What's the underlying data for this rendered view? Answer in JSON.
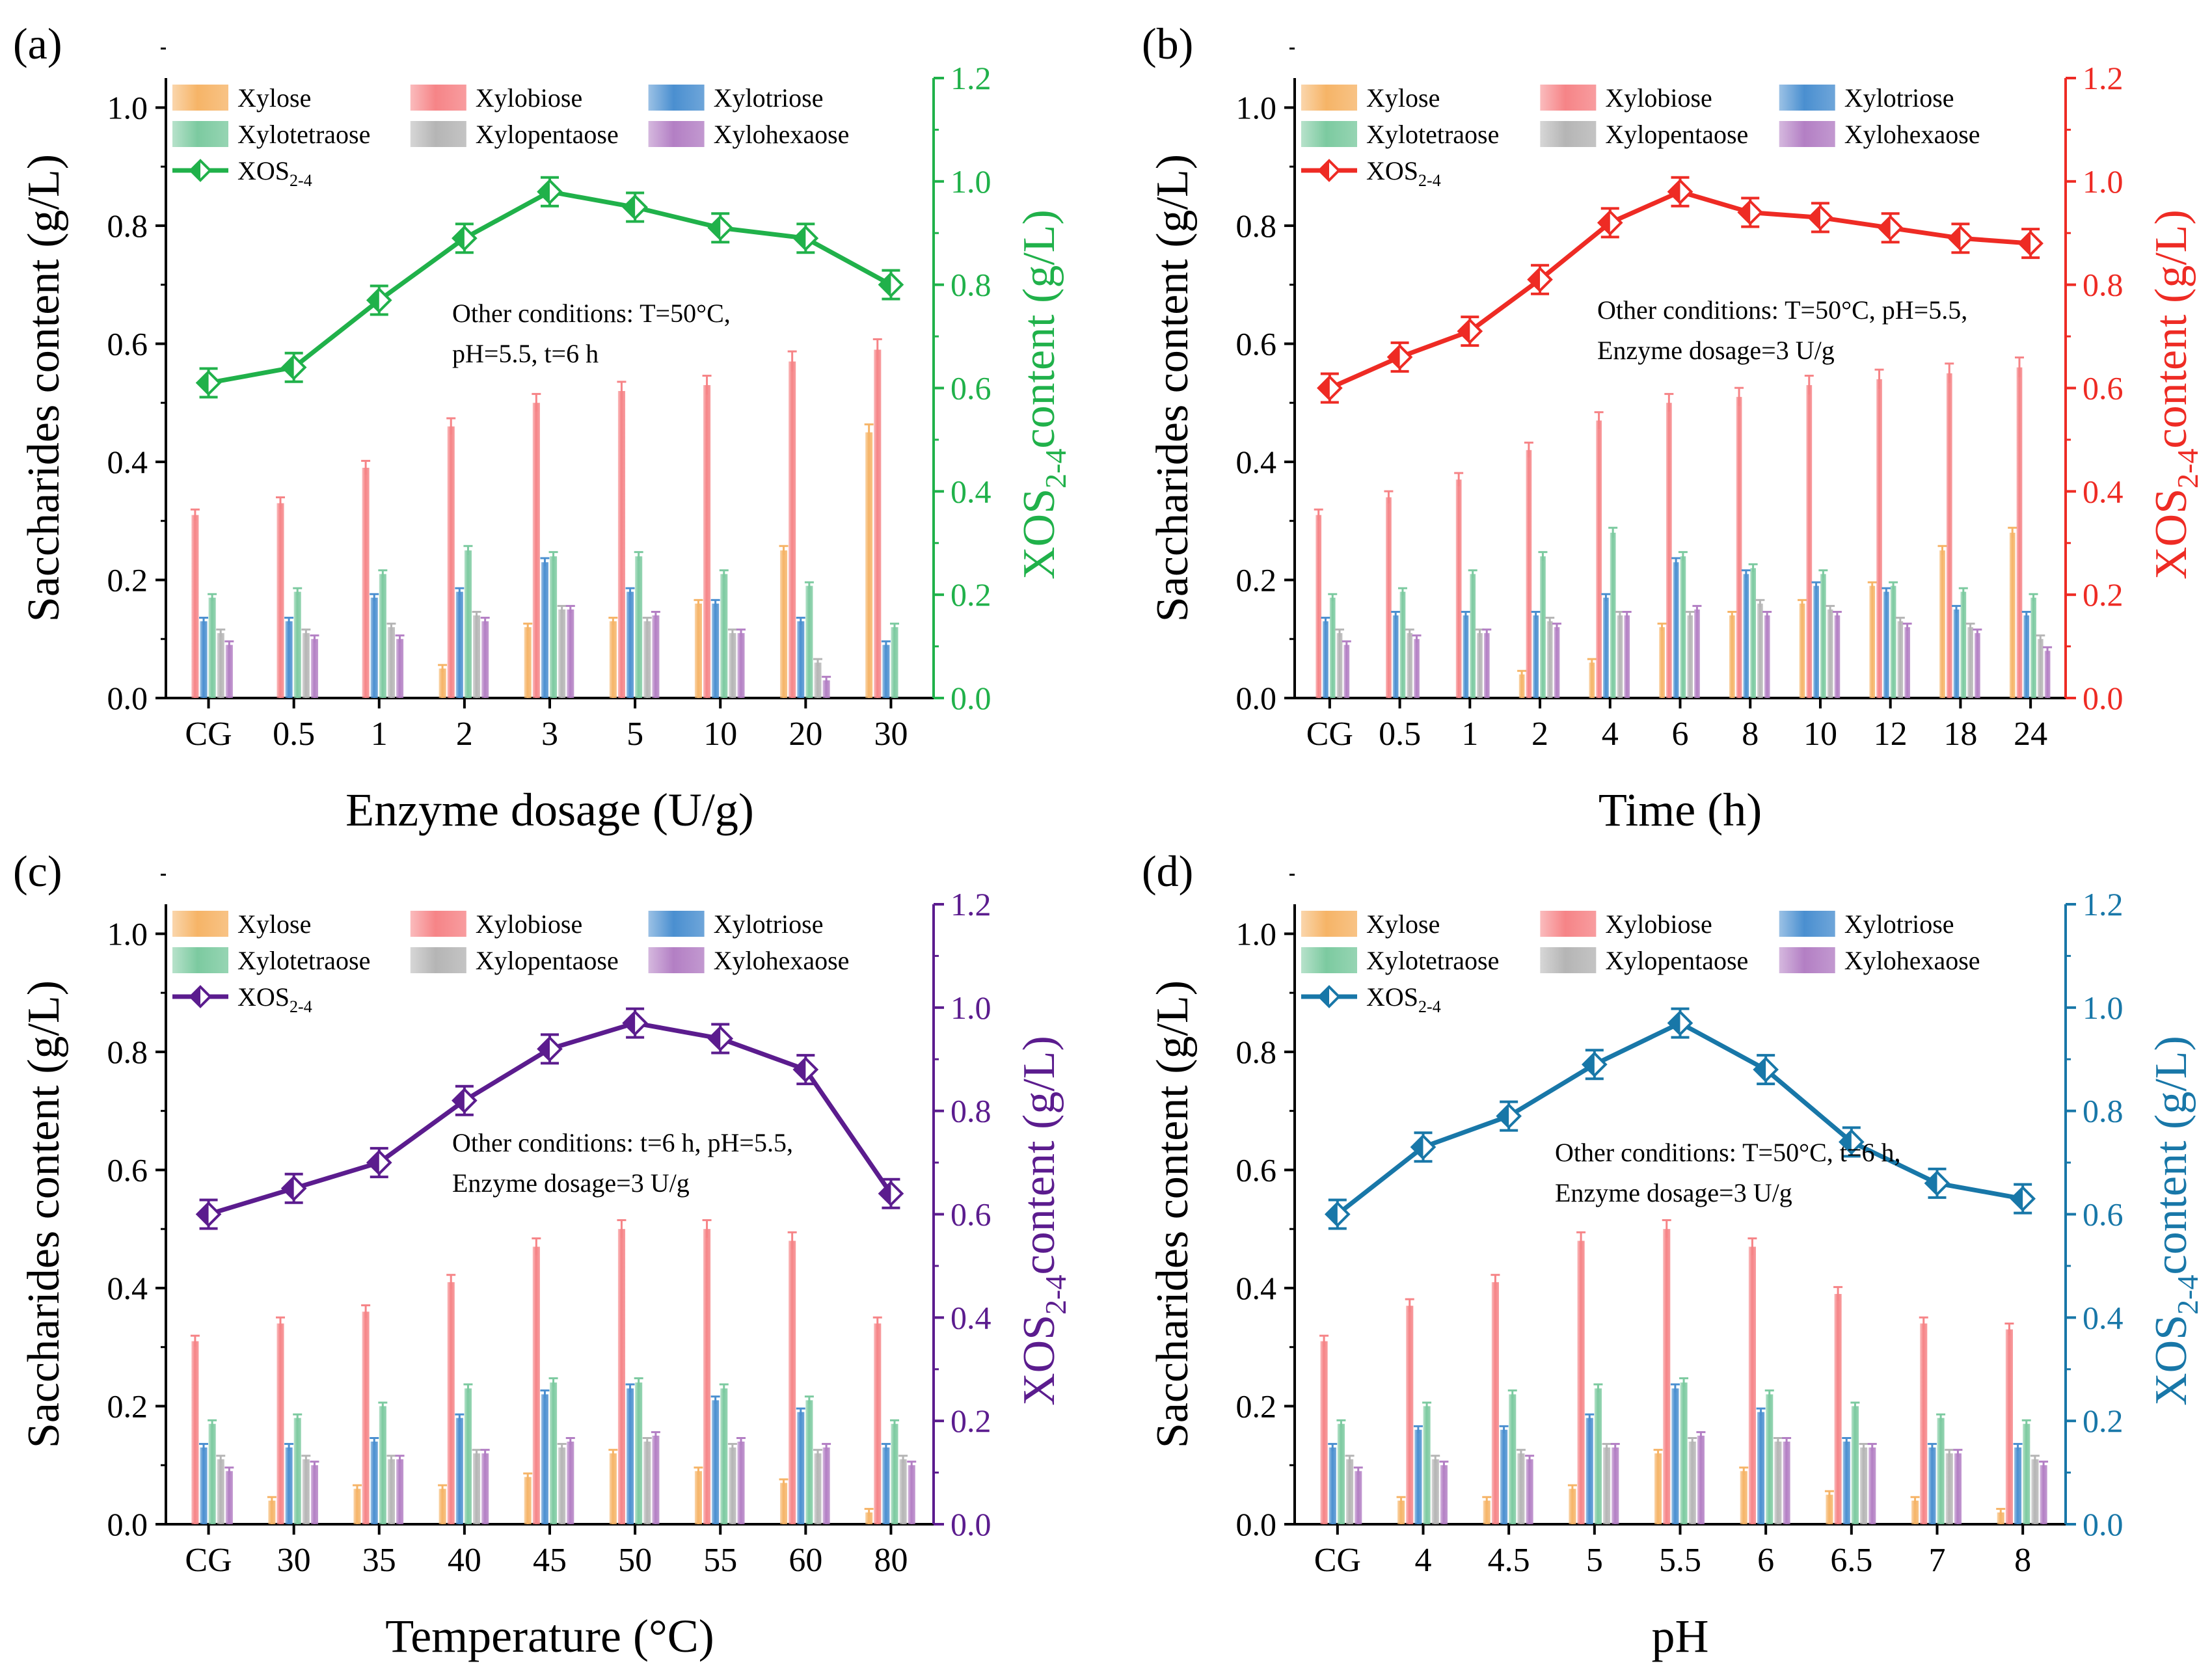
{
  "chart_data": [
    {
      "panel": "(a)",
      "type": "bar+line",
      "xlabel": "Enzyme dosage (U/g)",
      "ylabel": "Saccharides content (g/L)",
      "ylabel2_main": "XOS",
      "ylabel2_sub": "2-4",
      "ylabel2_rest": "content (g/L)",
      "accent": "#20b14a",
      "ylim": [
        0,
        1.05
      ],
      "y_ticks": [
        "0.0",
        "0.2",
        "0.4",
        "0.6",
        "0.8",
        "1.0"
      ],
      "y2lim": [
        0,
        1.2
      ],
      "y2_ticks": [
        "0.0",
        "0.2",
        "0.4",
        "0.6",
        "0.8",
        "1.0",
        "1.2"
      ],
      "categories": [
        "CG",
        "0.5",
        "1",
        "2",
        "3",
        "5",
        "10",
        "20",
        "30"
      ],
      "annotation": [
        "Other conditions: T=50°C,",
        "pH=5.5, t=6 h"
      ],
      "series": [
        {
          "name": "Xylose",
          "values": [
            0.0,
            0.0,
            0.0,
            0.05,
            0.12,
            0.13,
            0.16,
            0.25,
            0.45
          ]
        },
        {
          "name": "Xylobiose",
          "values": [
            0.31,
            0.33,
            0.39,
            0.46,
            0.5,
            0.52,
            0.53,
            0.57,
            0.59
          ]
        },
        {
          "name": "Xylotriose",
          "values": [
            0.13,
            0.13,
            0.17,
            0.18,
            0.23,
            0.18,
            0.16,
            0.13,
            0.09
          ]
        },
        {
          "name": "Xylotetraose",
          "values": [
            0.17,
            0.18,
            0.21,
            0.25,
            0.24,
            0.24,
            0.21,
            0.19,
            0.12
          ]
        },
        {
          "name": "Xylopentaose",
          "values": [
            0.11,
            0.11,
            0.12,
            0.14,
            0.15,
            0.13,
            0.11,
            0.06,
            0.0
          ]
        },
        {
          "name": "Xylohexaose",
          "values": [
            0.09,
            0.1,
            0.1,
            0.13,
            0.15,
            0.14,
            0.11,
            0.03,
            0.0
          ]
        }
      ],
      "line": {
        "name": "XOS2-4",
        "legend_main": "XOS",
        "legend_sub": "2-4",
        "values": [
          0.61,
          0.64,
          0.77,
          0.89,
          0.98,
          0.95,
          0.91,
          0.89,
          0.8
        ]
      }
    },
    {
      "panel": "(b)",
      "type": "bar+line",
      "xlabel": "Time (h)",
      "ylabel": "Saccharides content (g/L)",
      "ylabel2_main": "XOS",
      "ylabel2_sub": "2-4",
      "ylabel2_rest": "content (g/L)",
      "accent": "#ee2b24",
      "ylim": [
        0,
        1.05
      ],
      "y_ticks": [
        "0.0",
        "0.2",
        "0.4",
        "0.6",
        "0.8",
        "1.0"
      ],
      "y2lim": [
        0,
        1.2
      ],
      "y2_ticks": [
        "0.0",
        "0.2",
        "0.4",
        "0.6",
        "0.8",
        "1.0",
        "1.2"
      ],
      "categories": [
        "CG",
        "0.5",
        "1",
        "2",
        "4",
        "6",
        "8",
        "10",
        "12",
        "18",
        "24"
      ],
      "annotation": [
        "Other conditions: T=50°C, pH=5.5,",
        "Enzyme dosage=3 U/g"
      ],
      "series": [
        {
          "name": "Xylose",
          "values": [
            0.0,
            0.0,
            0.0,
            0.04,
            0.06,
            0.12,
            0.14,
            0.16,
            0.19,
            0.25,
            0.28
          ]
        },
        {
          "name": "Xylobiose",
          "values": [
            0.31,
            0.34,
            0.37,
            0.42,
            0.47,
            0.5,
            0.51,
            0.53,
            0.54,
            0.55,
            0.56
          ]
        },
        {
          "name": "Xylotriose",
          "values": [
            0.13,
            0.14,
            0.14,
            0.14,
            0.17,
            0.23,
            0.21,
            0.19,
            0.18,
            0.15,
            0.14
          ]
        },
        {
          "name": "Xylotetraose",
          "values": [
            0.17,
            0.18,
            0.21,
            0.24,
            0.28,
            0.24,
            0.22,
            0.21,
            0.19,
            0.18,
            0.17
          ]
        },
        {
          "name": "Xylopentaose",
          "values": [
            0.11,
            0.11,
            0.11,
            0.13,
            0.14,
            0.14,
            0.16,
            0.15,
            0.13,
            0.12,
            0.1
          ]
        },
        {
          "name": "Xylohexaose",
          "values": [
            0.09,
            0.1,
            0.11,
            0.12,
            0.14,
            0.15,
            0.14,
            0.14,
            0.12,
            0.11,
            0.08
          ]
        }
      ],
      "line": {
        "name": "XOS2-4",
        "legend_main": "XOS",
        "legend_sub": "2-4",
        "values": [
          0.6,
          0.66,
          0.71,
          0.81,
          0.92,
          0.98,
          0.94,
          0.93,
          0.91,
          0.89,
          0.88
        ]
      }
    },
    {
      "panel": "(c)",
      "type": "bar+line",
      "xlabel": "Temperature (°C)",
      "ylabel": "Saccharides content (g/L)",
      "ylabel2_main": "XOS",
      "ylabel2_sub": "2-4",
      "ylabel2_rest": "content (g/L)",
      "accent": "#5b1c8e",
      "ylim": [
        0,
        1.05
      ],
      "y_ticks": [
        "0.0",
        "0.2",
        "0.4",
        "0.6",
        "0.8",
        "1.0"
      ],
      "y2lim": [
        0,
        1.2
      ],
      "y2_ticks": [
        "0.0",
        "0.2",
        "0.4",
        "0.6",
        "0.8",
        "1.0",
        "1.2"
      ],
      "categories": [
        "CG",
        "30",
        "35",
        "40",
        "45",
        "50",
        "55",
        "60",
        "80"
      ],
      "annotation": [
        "Other conditions: t=6 h, pH=5.5,",
        "Enzyme dosage=3 U/g"
      ],
      "series": [
        {
          "name": "Xylose",
          "values": [
            0.0,
            0.04,
            0.06,
            0.06,
            0.08,
            0.12,
            0.09,
            0.07,
            0.02
          ]
        },
        {
          "name": "Xylobiose",
          "values": [
            0.31,
            0.34,
            0.36,
            0.41,
            0.47,
            0.5,
            0.5,
            0.48,
            0.34
          ]
        },
        {
          "name": "Xylotriose",
          "values": [
            0.13,
            0.13,
            0.14,
            0.18,
            0.22,
            0.23,
            0.21,
            0.19,
            0.13
          ]
        },
        {
          "name": "Xylotetraose",
          "values": [
            0.17,
            0.18,
            0.2,
            0.23,
            0.24,
            0.24,
            0.23,
            0.21,
            0.17
          ]
        },
        {
          "name": "Xylopentaose",
          "values": [
            0.11,
            0.11,
            0.11,
            0.12,
            0.13,
            0.14,
            0.13,
            0.12,
            0.11
          ]
        },
        {
          "name": "Xylohexaose",
          "values": [
            0.09,
            0.1,
            0.11,
            0.12,
            0.14,
            0.15,
            0.14,
            0.13,
            0.1
          ]
        }
      ],
      "line": {
        "name": "XOS2-4",
        "legend_main": "XOS",
        "legend_sub": "2-4",
        "values": [
          0.6,
          0.65,
          0.7,
          0.82,
          0.92,
          0.97,
          0.94,
          0.88,
          0.64
        ]
      }
    },
    {
      "panel": "(d)",
      "type": "bar+line",
      "xlabel": "pH",
      "ylabel": "Saccharides content (g/L)",
      "ylabel2_main": "XOS",
      "ylabel2_sub": "2-4",
      "ylabel2_rest": "content (g/L)",
      "accent": "#1877a8",
      "ylim": [
        0,
        1.05
      ],
      "y_ticks": [
        "0.0",
        "0.2",
        "0.4",
        "0.6",
        "0.8",
        "1.0"
      ],
      "y2lim": [
        0,
        1.2
      ],
      "y2_ticks": [
        "0.0",
        "0.2",
        "0.4",
        "0.6",
        "0.8",
        "1.0",
        "1.2"
      ],
      "categories": [
        "CG",
        "4",
        "4.5",
        "5",
        "5.5",
        "6",
        "6.5",
        "7",
        "8"
      ],
      "annotation": [
        "Other conditions: T=50°C, t=6 h,",
        "Enzyme dosage=3 U/g"
      ],
      "series": [
        {
          "name": "Xylose",
          "values": [
            0.0,
            0.04,
            0.04,
            0.06,
            0.12,
            0.09,
            0.05,
            0.04,
            0.02
          ]
        },
        {
          "name": "Xylobiose",
          "values": [
            0.31,
            0.37,
            0.41,
            0.48,
            0.5,
            0.47,
            0.39,
            0.34,
            0.33
          ]
        },
        {
          "name": "Xylotriose",
          "values": [
            0.13,
            0.16,
            0.16,
            0.18,
            0.23,
            0.19,
            0.14,
            0.13,
            0.13
          ]
        },
        {
          "name": "Xylotetraose",
          "values": [
            0.17,
            0.2,
            0.22,
            0.23,
            0.24,
            0.22,
            0.2,
            0.18,
            0.17
          ]
        },
        {
          "name": "Xylopentaose",
          "values": [
            0.11,
            0.11,
            0.12,
            0.13,
            0.14,
            0.14,
            0.13,
            0.12,
            0.11
          ]
        },
        {
          "name": "Xylohexaose",
          "values": [
            0.09,
            0.1,
            0.11,
            0.13,
            0.15,
            0.14,
            0.13,
            0.12,
            0.1
          ]
        }
      ],
      "line": {
        "name": "XOS2-4",
        "legend_main": "XOS",
        "legend_sub": "2-4",
        "values": [
          0.6,
          0.73,
          0.79,
          0.89,
          0.97,
          0.88,
          0.74,
          0.66,
          0.63
        ]
      }
    }
  ],
  "legend_order": [
    "Xylose",
    "Xylobiose",
    "Xylotriose",
    "Xylotetraose",
    "Xylopentaose",
    "Xylohexaose"
  ],
  "series_colors": {
    "Xylose": "#f6b467",
    "Xylobiose": "#f68487",
    "Xylotriose": "#4a8fd0",
    "Xylotetraose": "#7ccaa0",
    "Xylopentaose": "#b5b5b5",
    "Xylohexaose": "#b37fc4"
  }
}
